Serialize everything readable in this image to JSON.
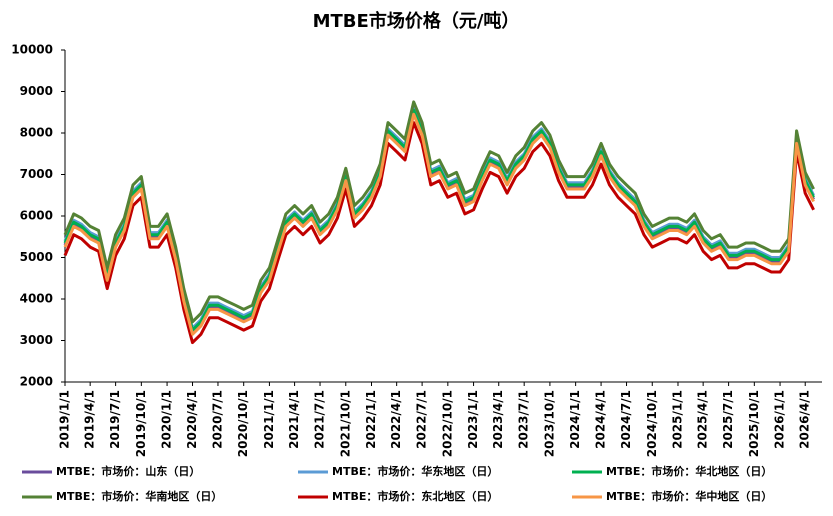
{
  "chart_data": {
    "type": "line",
    "title": "MTBE市场价格（元/吨）",
    "x": [
      "2019/1/1",
      "2019/2/1",
      "2019/3/1",
      "2019/4/1",
      "2019/5/1",
      "2019/6/1",
      "2019/7/1",
      "2019/8/1",
      "2019/9/1",
      "2019/10/1",
      "2019/11/1",
      "2019/12/1",
      "2020/1/1",
      "2020/2/1",
      "2020/3/1",
      "2020/4/1",
      "2020/5/1",
      "2020/6/1",
      "2020/7/1",
      "2020/8/1",
      "2020/9/1",
      "2020/10/1",
      "2020/11/1",
      "2020/12/1",
      "2021/1/1",
      "2021/2/1",
      "2021/3/1",
      "2021/4/1",
      "2021/5/1",
      "2021/6/1",
      "2021/7/1",
      "2021/8/1",
      "2021/9/1",
      "2021/10/1",
      "2021/11/1",
      "2021/12/1",
      "2022/1/1",
      "2022/2/1",
      "2022/3/1",
      "2022/4/1",
      "2022/5/1",
      "2022/6/1",
      "2022/7/1",
      "2022/8/1",
      "2022/9/1",
      "2022/10/1",
      "2022/11/1",
      "2022/12/1",
      "2023/1/1",
      "2023/2/1",
      "2023/3/1",
      "2023/4/1",
      "2023/5/1",
      "2023/6/1",
      "2023/7/1",
      "2023/8/1",
      "2023/9/1",
      "2023/10/1",
      "2023/11/1",
      "2023/12/1",
      "2024/1/1",
      "2024/2/1",
      "2024/3/1",
      "2024/4/1",
      "2024/5/1",
      "2024/6/1",
      "2024/7/1",
      "2024/8/1",
      "2024/9/1",
      "2024/10/1",
      "2024/11/1",
      "2024/12/1",
      "2025/1/1",
      "2025/2/1",
      "2025/3/1",
      "2025/4/1",
      "2025/5/1",
      "2025/6/1",
      "2025/7/1",
      "2025/8/1",
      "2025/9/1",
      "2025/10/1",
      "2025/11/1",
      "2025/12/1",
      "2026/1/1",
      "2026/2/1",
      "2026/3/1",
      "2026/4/1",
      "2026/5/1"
    ],
    "xlim": [
      "2019/1/1",
      "2026/5/31"
    ],
    "xticks": [
      "2019/1/1",
      "2019/4/1",
      "2019/7/1",
      "2019/10/1",
      "2020/1/1",
      "2020/4/1",
      "2020/7/1",
      "2020/10/1",
      "2021/1/1",
      "2021/4/1",
      "2021/7/1",
      "2021/10/1",
      "2022/1/1",
      "2022/4/1",
      "2022/7/1",
      "2022/10/1",
      "2023/1/1",
      "2023/4/1",
      "2023/7/1",
      "2023/10/1",
      "2024/1/1",
      "2024/4/1",
      "2024/7/1",
      "2024/10/1",
      "2025/1/1",
      "2025/4/1",
      "2025/7/1",
      "2025/10/1",
      "2026/1/1",
      "2026/4/1"
    ],
    "ylim": [
      2000,
      10000
    ],
    "yticks": [
      2000,
      3000,
      4000,
      5000,
      6000,
      7000,
      8000,
      9000,
      10000
    ],
    "grid": false,
    "legend": "bottom",
    "series": [
      {
        "name": "MTBE：市场价：山东（日）",
        "color": "#6a4c9c",
        "values": [
          5300,
          5800,
          5700,
          5500,
          5400,
          4500,
          5300,
          5700,
          6500,
          6700,
          5500,
          5500,
          5800,
          5000,
          4000,
          3200,
          3400,
          3800,
          3800,
          3700,
          3600,
          3500,
          3600,
          4200,
          4500,
          5200,
          5800,
          6000,
          5800,
          6000,
          5600,
          5800,
          6200,
          6900,
          6000,
          6200,
          6500,
          7000,
          8000,
          7800,
          7600,
          8500,
          8000,
          7000,
          7100,
          6700,
          6800,
          6300,
          6400,
          6900,
          7300,
          7200,
          6800,
          7200,
          7400,
          7800,
          8000,
          7700,
          7100,
          6700,
          6700,
          6700,
          7000,
          7500,
          7000,
          6700,
          6500,
          6300,
          5800,
          5500,
          5600,
          5700,
          5700,
          5600,
          5800,
          5400,
          5200,
          5300,
          5000,
          5000,
          5100,
          5100,
          5000,
          4900,
          4900,
          5200,
          7800,
          6800,
          6400
        ]
      },
      {
        "name": "MTBE：市场价：华东地区（日）",
        "color": "#5b9bd5",
        "values": [
          5400,
          5900,
          5800,
          5600,
          5500,
          4600,
          5400,
          5800,
          6600,
          6800,
          5600,
          5600,
          5900,
          5100,
          4100,
          3300,
          3500,
          3900,
          3900,
          3800,
          3700,
          3600,
          3700,
          4300,
          4600,
          5300,
          5900,
          6100,
          5900,
          6100,
          5700,
          5900,
          6300,
          7000,
          6100,
          6300,
          6600,
          7100,
          8100,
          7900,
          7700,
          8600,
          8100,
          7100,
          7200,
          6800,
          6900,
          6400,
          6500,
          7000,
          7400,
          7300,
          6900,
          7300,
          7500,
          7900,
          8100,
          7800,
          7200,
          6800,
          6800,
          6800,
          7100,
          7600,
          7100,
          6800,
          6600,
          6400,
          5900,
          5600,
          5700,
          5800,
          5800,
          5700,
          5900,
          5500,
          5300,
          5400,
          5100,
          5100,
          5200,
          5200,
          5100,
          5000,
          5000,
          5300,
          7900,
          6900,
          6500
        ]
      },
      {
        "name": "MTBE：市场价：华北地区（日）",
        "color": "#00b050",
        "values": [
          5350,
          5850,
          5750,
          5550,
          5450,
          4550,
          5350,
          5750,
          6550,
          6750,
          5550,
          5550,
          5850,
          5050,
          4050,
          3250,
          3450,
          3850,
          3850,
          3750,
          3650,
          3550,
          3650,
          4250,
          4550,
          5250,
          5850,
          6050,
          5850,
          6050,
          5650,
          5850,
          6250,
          6950,
          6050,
          6250,
          6550,
          7050,
          8050,
          7850,
          7650,
          8550,
          8050,
          7050,
          7150,
          6750,
          6850,
          6350,
          6450,
          6950,
          7350,
          7250,
          6850,
          7250,
          7450,
          7850,
          8050,
          7750,
          7150,
          6750,
          6750,
          6750,
          7050,
          7550,
          7050,
          6750,
          6550,
          6350,
          5850,
          5550,
          5650,
          5750,
          5750,
          5650,
          5850,
          5450,
          5250,
          5350,
          5050,
          5050,
          5150,
          5150,
          5050,
          4950,
          4950,
          5250,
          7850,
          6850,
          6450
        ]
      },
      {
        "name": "MTBE：市场价：华南地区（日）",
        "color": "#548235",
        "values": [
          5550,
          6050,
          5950,
          5750,
          5650,
          4750,
          5550,
          5950,
          6750,
          6950,
          5750,
          5750,
          6050,
          5250,
          4250,
          3450,
          3650,
          4050,
          4050,
          3950,
          3850,
          3750,
          3850,
          4450,
          4750,
          5450,
          6050,
          6250,
          6050,
          6250,
          5850,
          6050,
          6450,
          7150,
          6250,
          6450,
          6750,
          7250,
          8250,
          8050,
          7850,
          8750,
          8250,
          7250,
          7350,
          6950,
          7050,
          6550,
          6650,
          7150,
          7550,
          7450,
          7050,
          7450,
          7650,
          8050,
          8250,
          7950,
          7350,
          6950,
          6950,
          6950,
          7250,
          7750,
          7250,
          6950,
          6750,
          6550,
          6050,
          5750,
          5850,
          5950,
          5950,
          5850,
          6050,
          5650,
          5450,
          5550,
          5250,
          5250,
          5350,
          5350,
          5250,
          5150,
          5150,
          5450,
          8050,
          7050,
          6650
        ]
      },
      {
        "name": "MTBE：市场价：东北地区（日）",
        "color": "#c00000",
        "values": [
          5050,
          5550,
          5450,
          5250,
          5150,
          4250,
          5050,
          5450,
          6250,
          6450,
          5250,
          5250,
          5550,
          4750,
          3750,
          2950,
          3150,
          3550,
          3550,
          3450,
          3350,
          3250,
          3350,
          3950,
          4250,
          4950,
          5550,
          5750,
          5550,
          5750,
          5350,
          5550,
          5950,
          6650,
          5750,
          5950,
          6250,
          6750,
          7750,
          7550,
          7350,
          8250,
          7750,
          6750,
          6850,
          6450,
          6550,
          6050,
          6150,
          6650,
          7050,
          6950,
          6550,
          6950,
          7150,
          7550,
          7750,
          7450,
          6850,
          6450,
          6450,
          6450,
          6750,
          7250,
          6750,
          6450,
          6250,
          6050,
          5550,
          5250,
          5350,
          5450,
          5450,
          5350,
          5550,
          5150,
          4950,
          5050,
          4750,
          4750,
          4850,
          4850,
          4750,
          4650,
          4650,
          4950,
          7550,
          6550,
          6150
        ]
      },
      {
        "name": "MTBE：市场价：华中地区（日）",
        "color": "#f79646",
        "values": [
          5250,
          5750,
          5650,
          5450,
          5350,
          4450,
          5250,
          5650,
          6450,
          6650,
          5450,
          5450,
          5750,
          4950,
          3950,
          3150,
          3350,
          3750,
          3750,
          3650,
          3550,
          3450,
          3550,
          4150,
          4450,
          5150,
          5750,
          5950,
          5750,
          5950,
          5550,
          5750,
          6150,
          6850,
          5950,
          6150,
          6450,
          6950,
          7950,
          7750,
          7550,
          8450,
          7950,
          6950,
          7050,
          6650,
          6750,
          6250,
          6350,
          6850,
          7250,
          7150,
          6750,
          7150,
          7350,
          7750,
          7950,
          7650,
          7050,
          6650,
          6650,
          6650,
          6950,
          7450,
          6950,
          6650,
          6450,
          6250,
          5750,
          5450,
          5550,
          5650,
          5650,
          5550,
          5750,
          5350,
          5150,
          5250,
          4950,
          4950,
          5050,
          5050,
          4950,
          4850,
          4850,
          5150,
          7750,
          6750,
          6350
        ]
      }
    ]
  }
}
